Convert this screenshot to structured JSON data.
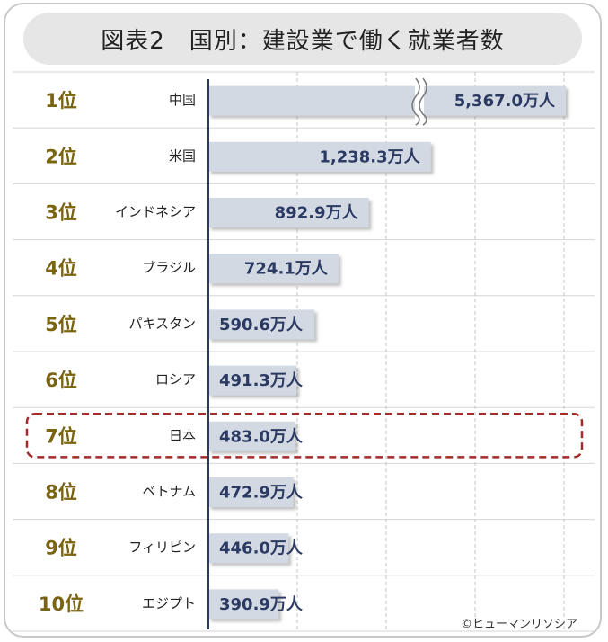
{
  "chart_data": {
    "type": "bar",
    "title": "図表2　国別：建設業で働く就業者数",
    "categories": [
      "中国",
      "米国",
      "インドネシア",
      "ブラジル",
      "パキスタン",
      "ロシア",
      "日本",
      "ベトナム",
      "フィリピン",
      "エジプト"
    ],
    "ranks": [
      "1位",
      "2位",
      "3位",
      "4位",
      "5位",
      "6位",
      "7位",
      "8位",
      "9位",
      "10位"
    ],
    "values": [
      5367.0,
      1238.3,
      892.9,
      724.1,
      590.6,
      491.3,
      483.0,
      472.9,
      446.0,
      390.9
    ],
    "value_labels": [
      "5,367.0万人",
      "1,238.3万人",
      "892.9万人",
      "724.1万人",
      "590.6万人",
      "491.3万人",
      "483.0万人",
      "472.9万人",
      "446.0万人",
      "390.9万人"
    ],
    "orientation": "horizontal",
    "axis_break": true,
    "broken_bar_index": 0,
    "highlighted_index": 6,
    "grid": true,
    "colors": {
      "bar": "#d3d9e3",
      "value_text": "#2b3a63",
      "rank_text": "#7a6410",
      "highlight_border": "#a52a2a"
    }
  },
  "copyright": "©ヒューマンリソシア"
}
